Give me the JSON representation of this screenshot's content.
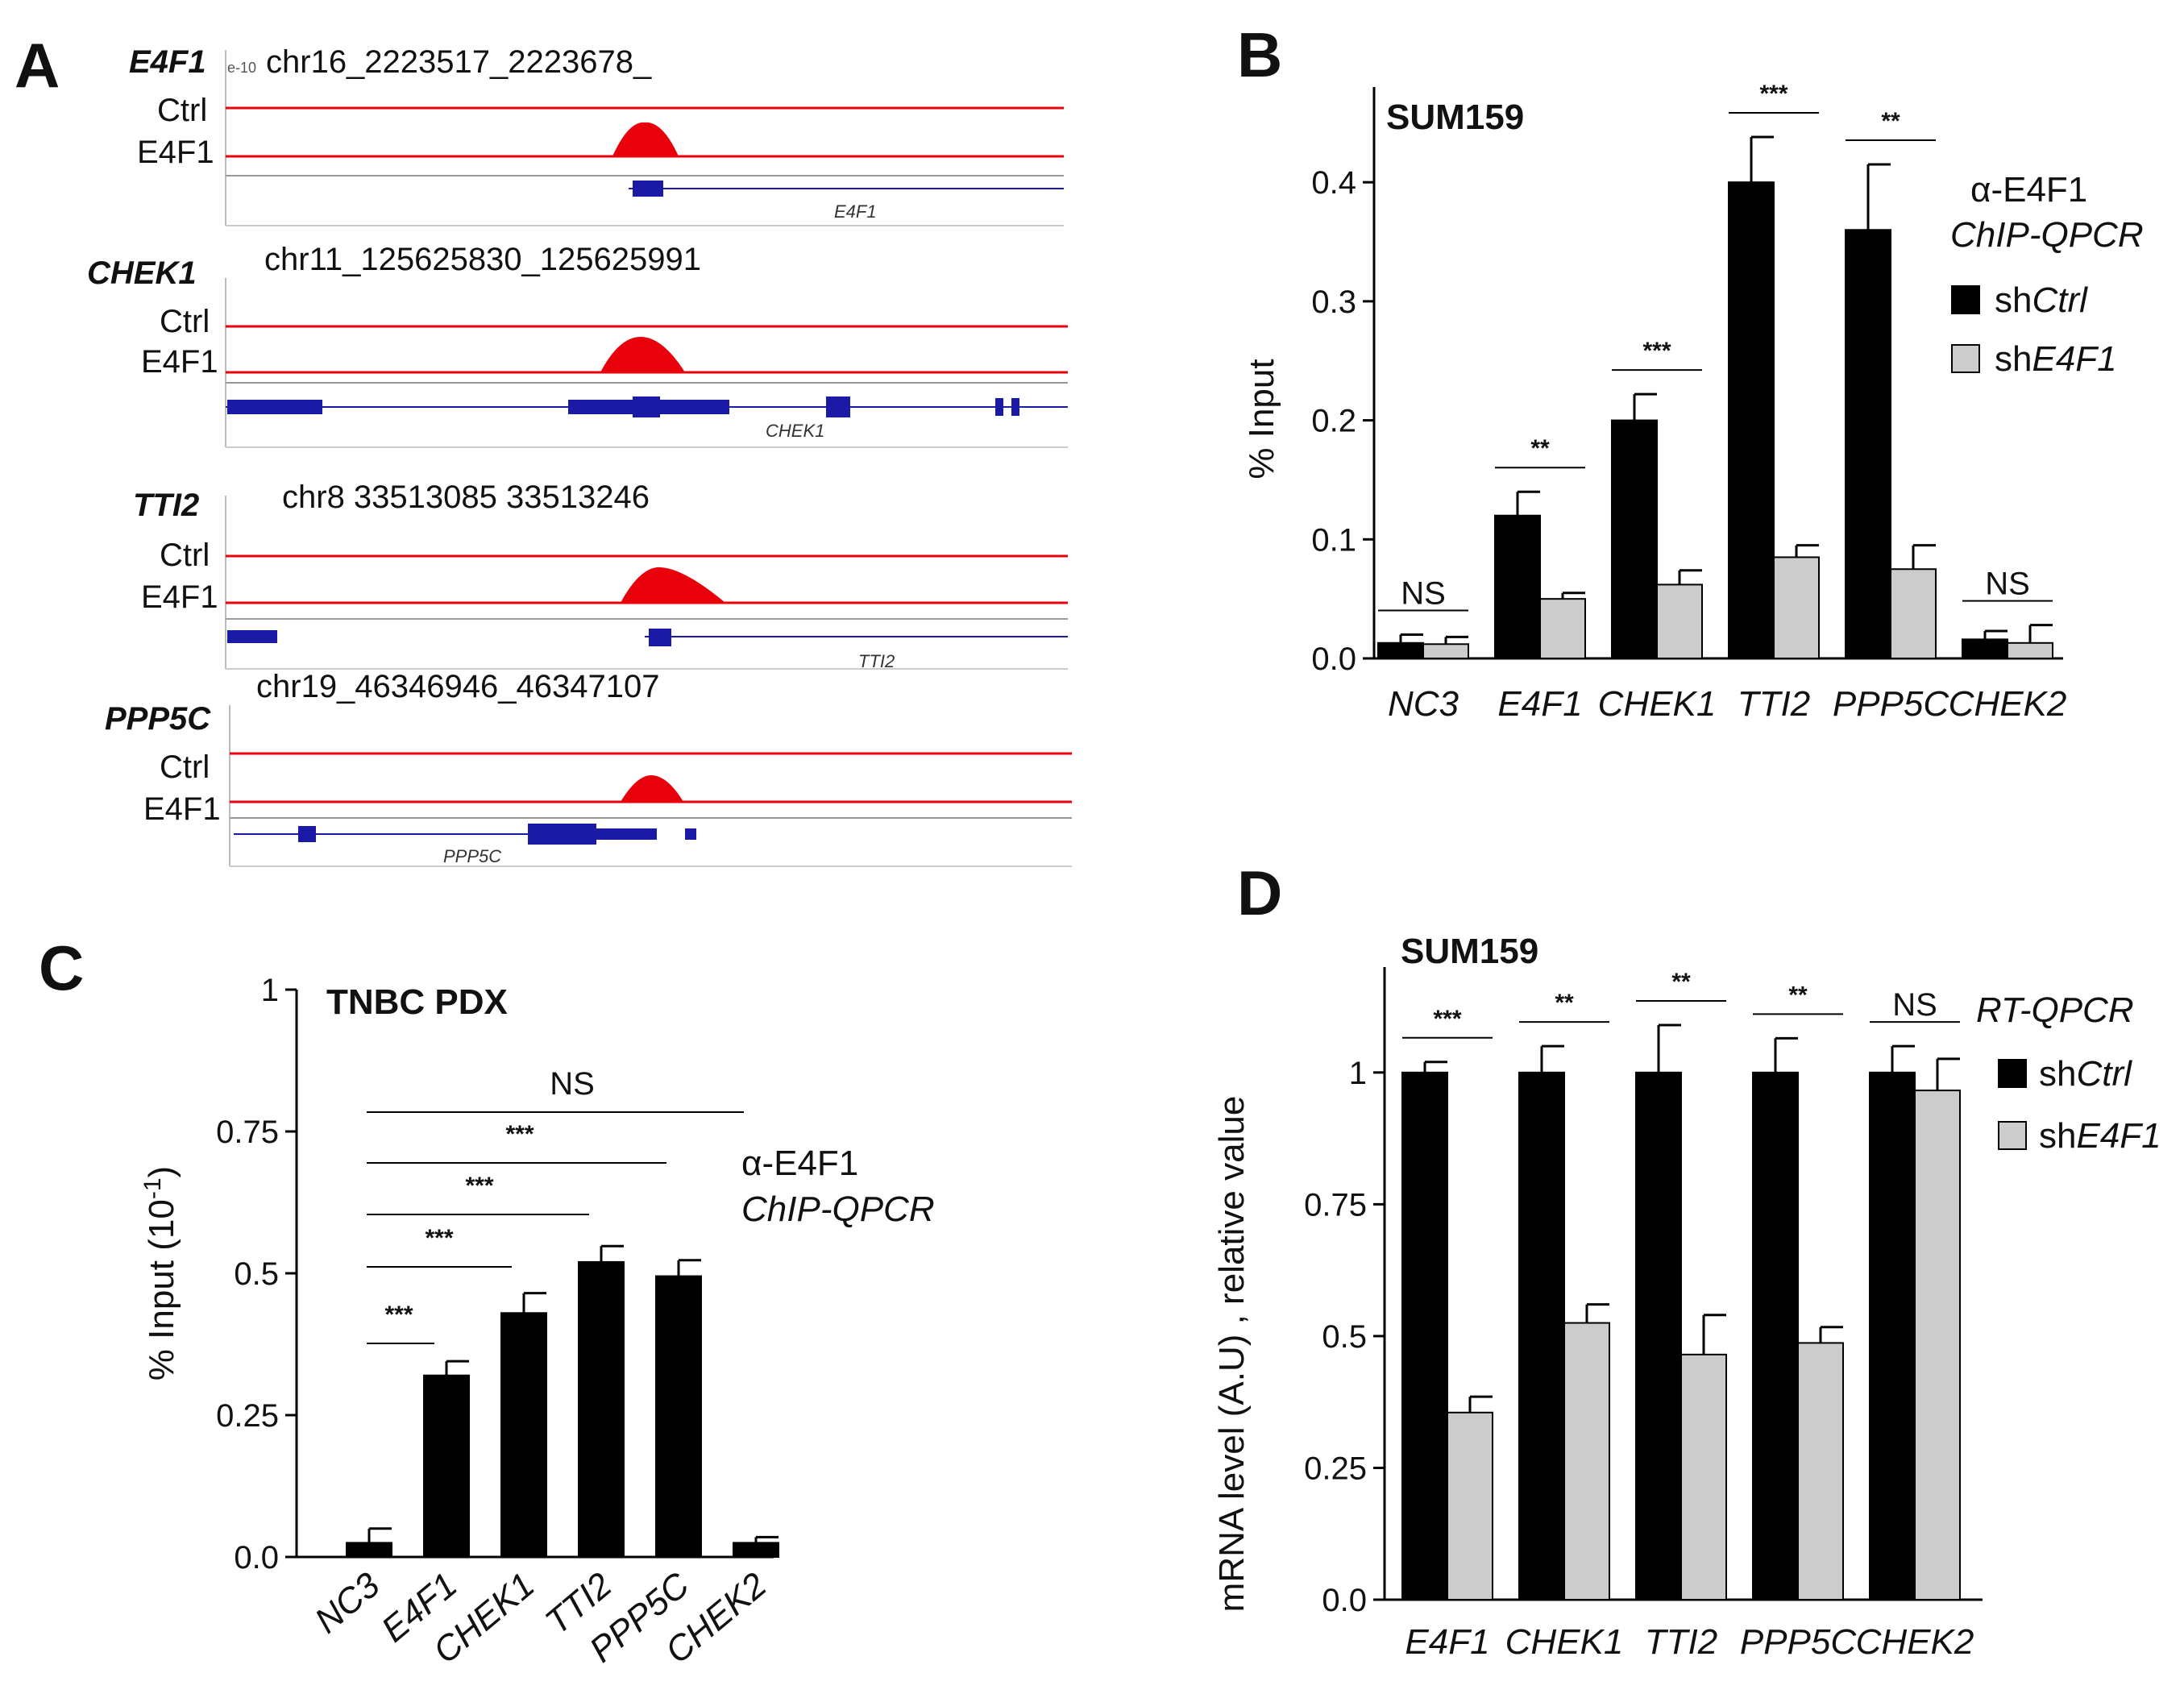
{
  "panels": {
    "A": {
      "label": "A",
      "tracks": [
        {
          "gene": "E4F1",
          "locus": "chr16_2223517_2223678_",
          "ctrl_label": "Ctrl",
          "e4f1_label": "E4F1",
          "gene_annotation": "E4F1"
        },
        {
          "gene": "CHEK1",
          "locus": "chr11_125625830_125625991",
          "ctrl_label": "Ctrl",
          "e4f1_label": "E4F1",
          "gene_annotation": "CHEK1"
        },
        {
          "gene": "TTI2",
          "locus": "chr8  33513085  33513246",
          "ctrl_label": "Ctrl",
          "e4f1_label": "E4F1",
          "gene_annotation": "TTI2"
        },
        {
          "gene": "PPP5C",
          "locus": "chr19_46346946_46347107",
          "ctrl_label": "Ctrl",
          "e4f1_label": "E4F1",
          "gene_annotation": "PPP5C"
        }
      ],
      "peak_color": "#e8000b",
      "gene_color": "#1a1aa6"
    },
    "B": {
      "label": "B"
    },
    "C": {
      "label": "C"
    },
    "D": {
      "label": "D"
    }
  },
  "legend": {
    "sh_prefix": "sh",
    "ctrl": "Ctrl",
    "e4f1": "E4F1"
  },
  "colors": {
    "black": "#000000",
    "gray": "#cccccc"
  },
  "chart_data": [
    {
      "panel": "B",
      "type": "bar",
      "title": "SUM159",
      "ylabel": "% Input",
      "assay_line1": "α-E4F1",
      "assay_line2": "ChIP-QPCR",
      "ylim": [
        0,
        0.48
      ],
      "yticks": [
        "0.0",
        "0.1",
        "0.2",
        "0.3",
        "0.4"
      ],
      "ytick_values": [
        0,
        0.1,
        0.2,
        0.3,
        0.4
      ],
      "categories": [
        "NC3",
        "E4F1",
        "CHEK1",
        "TTI2",
        "PPP5C",
        "CHEK2"
      ],
      "series": [
        {
          "name": "shCtrl",
          "values": [
            0.013,
            0.12,
            0.2,
            0.4,
            0.36,
            0.016
          ],
          "errors": [
            0.007,
            0.02,
            0.022,
            0.038,
            0.055,
            0.007
          ]
        },
        {
          "name": "shE4F1",
          "values": [
            0.012,
            0.05,
            0.062,
            0.085,
            0.075,
            0.013
          ],
          "errors": [
            0.006,
            0.005,
            0.012,
            0.01,
            0.02,
            0.015
          ]
        }
      ],
      "significance": [
        "NS",
        "**",
        "***",
        "***",
        "**",
        "NS"
      ]
    },
    {
      "panel": "C",
      "type": "bar",
      "title": "TNBC PDX",
      "ylabel": "% Input (10",
      "ylabel_sup": "-1",
      "ylabel_end": ")",
      "assay_line1": "α-E4F1",
      "assay_line2": "ChIP-QPCR",
      "ylim": [
        0,
        1
      ],
      "yticks": [
        "0.0",
        "0.25",
        "0.5",
        "0.75",
        "1"
      ],
      "ytick_values": [
        0,
        0.25,
        0.5,
        0.75,
        1
      ],
      "categories": [
        "NC3",
        "E4F1",
        "CHEK1",
        "TTI2",
        "PPP5C",
        "CHEK2"
      ],
      "series": [
        {
          "name": "% Input",
          "values": [
            0.025,
            0.32,
            0.43,
            0.52,
            0.495,
            0.025
          ],
          "errors": [
            0.025,
            0.025,
            0.035,
            0.028,
            0.028,
            0.01
          ]
        }
      ],
      "comparisons": [
        {
          "from": "NC3",
          "to": "E4F1",
          "label": "***"
        },
        {
          "from": "NC3",
          "to": "CHEK1",
          "label": "***"
        },
        {
          "from": "NC3",
          "to": "TTI2",
          "label": "***"
        },
        {
          "from": "NC3",
          "to": "PPP5C",
          "label": "***"
        },
        {
          "from": "NC3",
          "to": "CHEK2",
          "label": "NS"
        }
      ]
    },
    {
      "panel": "D",
      "type": "bar",
      "title": "SUM159",
      "ylabel": "mRNA level (A.U) , relative value",
      "assay_line1": "RT-QPCR",
      "ylim": [
        0,
        1.2
      ],
      "yticks": [
        "0.0",
        "0.25",
        "0.5",
        "0.75",
        "1"
      ],
      "ytick_values": [
        0,
        0.25,
        0.5,
        0.75,
        1
      ],
      "categories": [
        "E4F1",
        "CHEK1",
        "TTI2",
        "PPP5C",
        "CHEK2"
      ],
      "series": [
        {
          "name": "shCtrl",
          "values": [
            1.0,
            1.0,
            1.0,
            1.0,
            1.0
          ],
          "errors": [
            0.02,
            0.05,
            0.09,
            0.065,
            0.05
          ]
        },
        {
          "name": "shE4F1",
          "values": [
            0.355,
            0.525,
            0.465,
            0.487,
            0.966
          ],
          "errors": [
            0.03,
            0.035,
            0.075,
            0.03,
            0.06
          ]
        }
      ],
      "significance": [
        "***",
        "**",
        "**",
        "**",
        "NS"
      ]
    }
  ]
}
